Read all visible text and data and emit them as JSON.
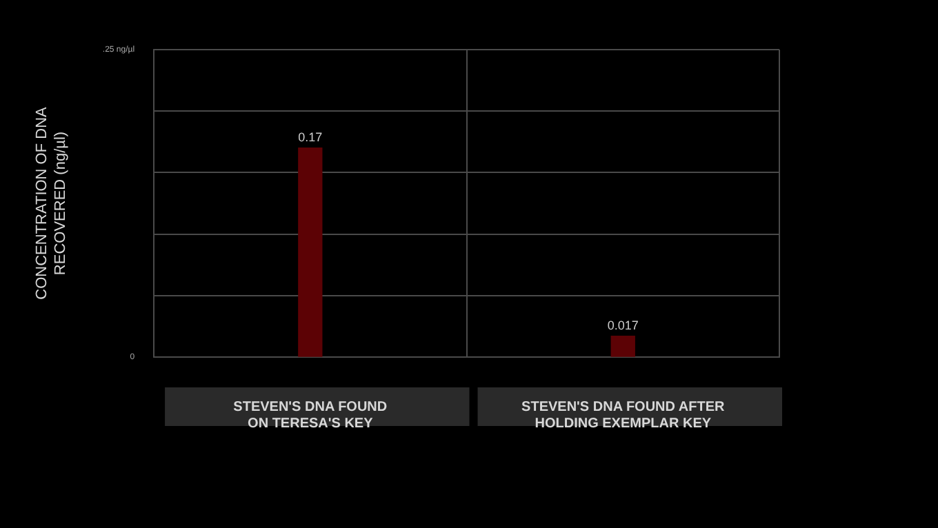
{
  "chart_data": {
    "type": "bar",
    "ylabel": "CONCENTRATION OF DNA RECOVERED (ng/µl)",
    "categories": [
      "STEVEN'S DNA FOUND ON TERESA'S KEY",
      "STEVEN'S DNA FOUND AFTER HOLDING EXEMPLAR KEY"
    ],
    "values": [
      0.17,
      0.017
    ],
    "color": "#5c0205",
    "ylim": [
      0,
      0.25
    ],
    "yticks": [
      {
        "value": 0,
        "label": "0"
      },
      {
        "value": 0.05,
        "label": null
      },
      {
        "value": 0.1,
        "label": null
      },
      {
        "value": 0.15,
        "label": null
      },
      {
        "value": 0.2,
        "label": null
      },
      {
        "value": 0.25,
        "label": ".25 ng/µl"
      }
    ],
    "grid": true,
    "data_labels": true
  }
}
